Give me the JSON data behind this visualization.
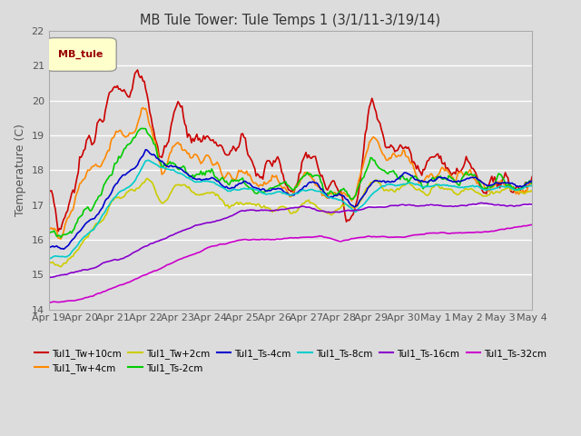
{
  "title": "MB Tule Tower: Tule Temps 1 (3/1/11-3/19/14)",
  "ylabel": "Temperature (C)",
  "ylim": [
    14.0,
    22.0
  ],
  "yticks": [
    14.0,
    15.0,
    16.0,
    17.0,
    18.0,
    19.0,
    20.0,
    21.0,
    22.0
  ],
  "background_color": "#dcdcdc",
  "legend_box_label": "MB_tule",
  "x_labels": [
    "Apr 19",
    "Apr 20",
    "Apr 21",
    "Apr 22",
    "Apr 23",
    "Apr 24",
    "Apr 25",
    "Apr 26",
    "Apr 27",
    "Apr 28",
    "Apr 29",
    "Apr 30",
    "May 1",
    "May 2",
    "May 3",
    "May 4"
  ],
  "series": [
    {
      "label": "Tul1_Tw+10cm",
      "color": "#cc0000",
      "linewidth": 1.2
    },
    {
      "label": "Tul1_Tw+4cm",
      "color": "#ff8800",
      "linewidth": 1.2
    },
    {
      "label": "Tul1_Tw+2cm",
      "color": "#cccc00",
      "linewidth": 1.2
    },
    {
      "label": "Tul1_Ts-2cm",
      "color": "#00cc00",
      "linewidth": 1.2
    },
    {
      "label": "Tul1_Ts-4cm",
      "color": "#0000cc",
      "linewidth": 1.2
    },
    {
      "label": "Tul1_Ts-8cm",
      "color": "#00cccc",
      "linewidth": 1.2
    },
    {
      "label": "Tul1_Ts-16cm",
      "color": "#8800cc",
      "linewidth": 1.2
    },
    {
      "label": "Tul1_Ts-32cm",
      "color": "#cc00cc",
      "linewidth": 1.2
    }
  ]
}
